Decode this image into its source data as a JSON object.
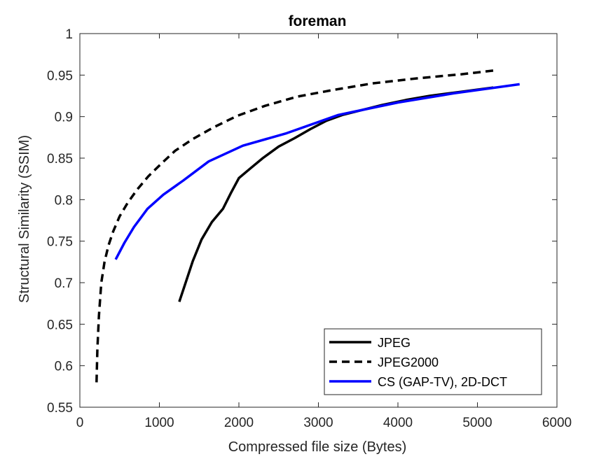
{
  "chart_data": {
    "type": "line",
    "title": "foreman",
    "xlabel": "Compressed file size (Bytes)",
    "ylabel": "Structural Similarity (SSIM)",
    "xlim": [
      0,
      6000
    ],
    "ylim": [
      0.55,
      1
    ],
    "xticks": [
      0,
      1000,
      2000,
      3000,
      4000,
      5000,
      6000
    ],
    "xtick_labels": [
      "0",
      "1000",
      "2000",
      "3000",
      "4000",
      "5000",
      "6000"
    ],
    "yticks": [
      0.55,
      0.6,
      0.65,
      0.7,
      0.75,
      0.8,
      0.85,
      0.9,
      0.95,
      1
    ],
    "ytick_labels": [
      "0.55",
      "0.6",
      "0.65",
      "0.7",
      "0.75",
      "0.8",
      "0.85",
      "0.9",
      "0.95",
      "1"
    ],
    "grid": false,
    "legend_position": "bottom-right",
    "series": [
      {
        "name": "JPEG",
        "color": "#000000",
        "dash": "solid",
        "x": [
          1250,
          1320,
          1420,
          1530,
          1660,
          1800,
          1900,
          2000,
          2150,
          2300,
          2500,
          2700,
          2900,
          3100,
          3300,
          3550,
          3800,
          4100,
          4400,
          4800,
          5200
        ],
        "y": [
          0.677,
          0.697,
          0.726,
          0.752,
          0.773,
          0.789,
          0.808,
          0.826,
          0.838,
          0.85,
          0.864,
          0.874,
          0.885,
          0.895,
          0.902,
          0.908,
          0.914,
          0.92,
          0.925,
          0.93,
          0.935
        ]
      },
      {
        "name": "JPEG2000",
        "color": "#000000",
        "dash": "dashed",
        "x": [
          210,
          220,
          240,
          270,
          310,
          360,
          420,
          500,
          600,
          720,
          860,
          1020,
          1200,
          1420,
          1680,
          1980,
          2330,
          2730,
          3180,
          3680,
          4230,
          4800,
          5250
        ],
        "y": [
          0.58,
          0.62,
          0.66,
          0.7,
          0.725,
          0.745,
          0.762,
          0.78,
          0.796,
          0.812,
          0.828,
          0.843,
          0.859,
          0.873,
          0.887,
          0.901,
          0.913,
          0.924,
          0.932,
          0.94,
          0.946,
          0.951,
          0.956
        ]
      },
      {
        "name": "CS (GAP-TV), 2D-DCT",
        "color": "#0000ff",
        "dash": "solid",
        "x": [
          450,
          560,
          680,
          850,
          1050,
          1300,
          1620,
          2050,
          2600,
          3250,
          4000,
          4700,
          5530
        ],
        "y": [
          0.728,
          0.748,
          0.767,
          0.789,
          0.806,
          0.823,
          0.846,
          0.865,
          0.88,
          0.902,
          0.917,
          0.928,
          0.939
        ]
      }
    ]
  }
}
